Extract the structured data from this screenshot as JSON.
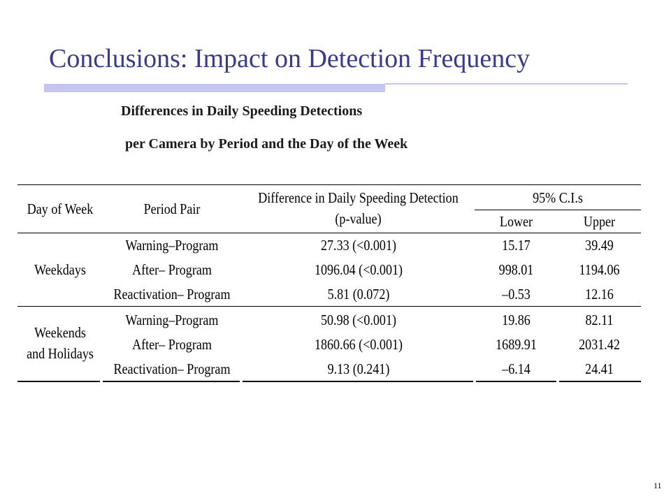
{
  "slide": {
    "title": "Conclusions: Impact on Detection Frequency",
    "subtitle_line1": "Differences in Daily Speeding Detections",
    "subtitle_line2": "per Camera by Period and the Day of the Week",
    "page_number": "11",
    "colors": {
      "title": "#3a3a8c",
      "accent_bar": "#c3c6ee"
    }
  },
  "table": {
    "headers": {
      "day_of_week": "Day of Week",
      "period_pair": "Period Pair",
      "difference_line1": "Difference in Daily Speeding Detection",
      "difference_line2": "(p-value)",
      "ci": "95% C.I.s",
      "lower": "Lower",
      "upper": "Upper"
    },
    "groups": [
      {
        "day_line1": "Weekdays",
        "day_line2": "",
        "rows": [
          {
            "pair": "Warning–Program",
            "difference": "27.33 (<0.001)",
            "lower": "15.17",
            "upper": "39.49"
          },
          {
            "pair": "After– Program",
            "difference": "1096.04 (<0.001)",
            "lower": "998.01",
            "upper": "1194.06"
          },
          {
            "pair": "Reactivation– Program",
            "difference": "5.81 (0.072)",
            "lower": "–0.53",
            "upper": "12.16"
          }
        ]
      },
      {
        "day_line1": "Weekends",
        "day_line2": "and Holidays",
        "rows": [
          {
            "pair": "Warning–Program",
            "difference": "50.98 (<0.001)",
            "lower": "19.86",
            "upper": "82.11"
          },
          {
            "pair": "After– Program",
            "difference": "1860.66 (<0.001)",
            "lower": "1689.91",
            "upper": "2031.42"
          },
          {
            "pair": "Reactivation– Program",
            "difference": "9.13 (0.241)",
            "lower": "–6.14",
            "upper": "24.41"
          }
        ]
      }
    ]
  }
}
